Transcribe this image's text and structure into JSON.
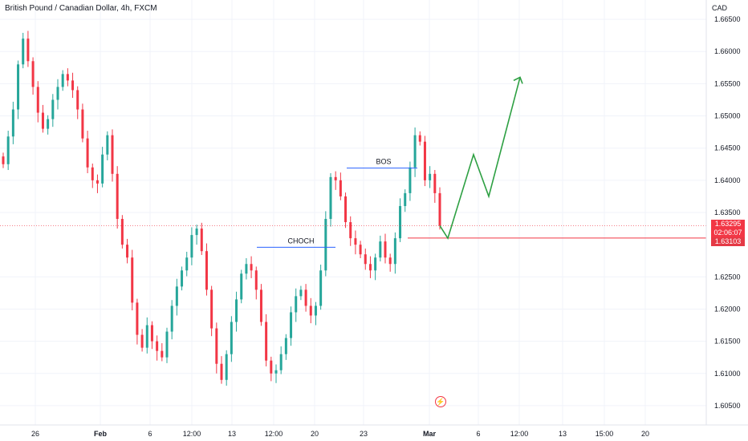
{
  "header": {
    "title": "British Pound / Canadian Dollar, 4h, FXCM",
    "currency": "CAD"
  },
  "price_badges": {
    "last": "1.63295",
    "countdown": "02:06:07",
    "level": "1.63103"
  },
  "annotations": {
    "bos": "BOS",
    "choch": "CHOCH"
  },
  "colors": {
    "up": "#26a69a",
    "down": "#f23645",
    "projection": "#2ea043",
    "line": "#2962ff"
  },
  "chart_data": {
    "type": "candlestick",
    "title": "British Pound / Canadian Dollar, 4h, FXCM",
    "y_axis": {
      "label": "CAD",
      "ticks": [
        "1.66500",
        "1.66000",
        "1.65500",
        "1.65000",
        "1.64500",
        "1.64000",
        "1.63500",
        "1.62500",
        "1.62000",
        "1.61500",
        "1.61000",
        "1.60500"
      ],
      "range": [
        1.602,
        1.668
      ]
    },
    "x_axis": {
      "ticks": [
        "26",
        "Feb",
        "6",
        "12:00",
        "13",
        "12:00",
        "20",
        "23",
        "Mar",
        "6",
        "12:00",
        "13",
        "15:00",
        "20"
      ]
    },
    "closes": [
      1.6425,
      1.6468,
      1.651,
      1.658,
      1.662,
      1.6585,
      1.6545,
      1.6505,
      1.648,
      1.6495,
      1.6525,
      1.6545,
      1.6565,
      1.6555,
      1.654,
      1.651,
      1.6465,
      1.642,
      1.64,
      1.6395,
      1.644,
      1.647,
      1.641,
      1.634,
      1.63,
      1.628,
      1.621,
      1.616,
      1.614,
      1.6175,
      1.615,
      1.6135,
      1.6125,
      1.6165,
      1.6205,
      1.6235,
      1.626,
      1.628,
      1.6315,
      1.6325,
      1.629,
      1.623,
      1.617,
      1.6115,
      1.609,
      1.613,
      1.618,
      1.6215,
      1.6255,
      1.627,
      1.626,
      1.623,
      1.618,
      1.612,
      1.61,
      1.6105,
      1.613,
      1.6155,
      1.6195,
      1.622,
      1.623,
      1.6205,
      1.619,
      1.6205,
      1.626,
      1.634,
      1.6405,
      1.64,
      1.6375,
      1.6335,
      1.631,
      1.63,
      1.6285,
      1.627,
      1.626,
      1.628,
      1.6305,
      1.628,
      1.627,
      1.631,
      1.636,
      1.638,
      1.642,
      1.647,
      1.646,
      1.64,
      1.641,
      1.638,
      1.63295
    ],
    "last_price": 1.63295,
    "levels": [
      {
        "name": "BOS",
        "price": 1.6419
      },
      {
        "name": "CHOCH",
        "price": 1.6296
      },
      {
        "name": "support",
        "price": 1.63103
      }
    ],
    "projection": [
      1.631,
      1.644,
      1.6375,
      1.656
    ]
  }
}
